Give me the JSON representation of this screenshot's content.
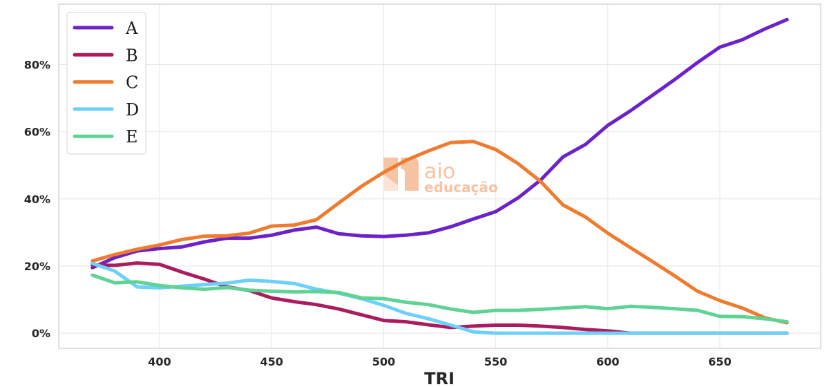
{
  "chart_data": {
    "type": "line",
    "xlabel": "TRI",
    "ylabel": "",
    "xlim": [
      355,
      695
    ],
    "ylim": [
      -4.5,
      98
    ],
    "x_ticks": [
      400,
      450,
      500,
      550,
      600,
      650
    ],
    "y_ticks": [
      0,
      20,
      40,
      60,
      80
    ],
    "y_tick_suffix": "%",
    "grid": true,
    "legend_position": "top-left",
    "x": [
      370,
      380,
      390,
      400,
      410,
      420,
      430,
      440,
      450,
      460,
      470,
      480,
      490,
      500,
      510,
      520,
      530,
      540,
      550,
      560,
      570,
      580,
      590,
      600,
      610,
      620,
      630,
      640,
      650,
      660,
      670,
      680
    ],
    "series": [
      {
        "name": "A",
        "color": "#6c22c9",
        "values": [
          19.5,
          22.5,
          24.5,
          25.2,
          25.7,
          27.2,
          28.3,
          28.3,
          29.2,
          30.7,
          31.6,
          29.6,
          29.0,
          28.8,
          29.2,
          29.9,
          31.7,
          34.0,
          36.2,
          40.3,
          45.6,
          52.5,
          56.2,
          61.9,
          66.2,
          70.9,
          75.6,
          80.6,
          85.2,
          87.4,
          90.6,
          93.4
        ]
      },
      {
        "name": "B",
        "color": "#a91d5e",
        "values": [
          20.3,
          20.2,
          20.9,
          20.5,
          18.2,
          16.1,
          13.8,
          12.7,
          10.5,
          9.4,
          8.5,
          7.2,
          5.5,
          3.8,
          3.4,
          2.5,
          1.7,
          2.1,
          2.4,
          2.4,
          2.1,
          1.7,
          1.1,
          0.7,
          0.0,
          0.0,
          0.0,
          0.0,
          0.0,
          0.0,
          0.0,
          0.0
        ]
      },
      {
        "name": "C",
        "color": "#ef7b2f",
        "values": [
          21.5,
          23.4,
          25.0,
          26.3,
          27.9,
          28.9,
          29.0,
          29.8,
          31.9,
          32.2,
          33.8,
          38.8,
          43.7,
          47.9,
          51.5,
          54.3,
          56.8,
          57.1,
          54.7,
          50.5,
          45.2,
          38.2,
          34.6,
          29.8,
          25.5,
          21.3,
          17.0,
          12.5,
          9.7,
          7.5,
          4.6,
          3.1
        ]
      },
      {
        "name": "D",
        "color": "#6dcffb",
        "values": [
          20.8,
          18.5,
          13.8,
          13.5,
          14.0,
          14.5,
          14.9,
          15.8,
          15.4,
          14.8,
          13.1,
          11.9,
          10.3,
          8.3,
          5.9,
          4.3,
          2.4,
          0.4,
          0.0,
          0.0,
          0.0,
          0.0,
          0.0,
          0.0,
          0.0,
          0.0,
          0.0,
          0.0,
          0.0,
          0.0,
          0.0,
          0.0
        ]
      },
      {
        "name": "E",
        "color": "#5ed394",
        "values": [
          17.3,
          15.0,
          15.3,
          14.2,
          13.5,
          13.1,
          13.6,
          12.8,
          12.5,
          12.3,
          12.4,
          12.1,
          10.5,
          10.3,
          9.2,
          8.5,
          7.2,
          6.2,
          6.8,
          6.8,
          7.1,
          7.5,
          7.9,
          7.3,
          8.0,
          7.7,
          7.3,
          6.8,
          5.0,
          4.9,
          4.3,
          3.4
        ]
      }
    ]
  },
  "watermark": {
    "line1": "aio",
    "line2": "educação",
    "color": "#f6c3a3"
  }
}
